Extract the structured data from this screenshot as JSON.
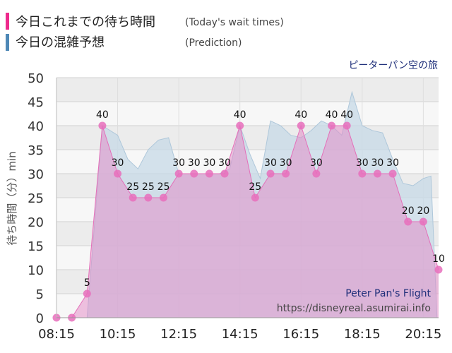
{
  "legend": [
    {
      "label": "今日これまでの待ち時間",
      "sub": "(Today's wait times)",
      "color": "#ee2a8d"
    },
    {
      "label": "今日の混雑予想",
      "sub": "(Prediction)",
      "color": "#4e88b6"
    }
  ],
  "attraction_jp": "ピーターパン空の旅",
  "attraction_en": "Peter Pan's Flight",
  "source_url": "https://disneyreal.asumirai.info",
  "chart_data": {
    "type": "area",
    "ylabel": "待ち時間（分）min",
    "ylim": [
      0,
      50
    ],
    "yticks": [
      0,
      5,
      10,
      15,
      20,
      25,
      30,
      35,
      40,
      45,
      50
    ],
    "xlim": [
      "08:15",
      "20:45"
    ],
    "xticks": [
      "08:15",
      "10:15",
      "12:15",
      "14:15",
      "16:15",
      "18:15",
      "20:15"
    ],
    "grid": true,
    "series": [
      {
        "name": "今日これまでの待ち時間",
        "color": "#ee2a8d",
        "times": [
          "08:15",
          "08:45",
          "09:15",
          "09:45",
          "10:15",
          "10:45",
          "11:15",
          "11:45",
          "12:15",
          "12:45",
          "13:15",
          "13:45",
          "14:15",
          "14:45",
          "15:15",
          "15:45",
          "16:15",
          "16:45",
          "17:15",
          "17:45",
          "18:15",
          "18:45",
          "19:15",
          "19:45",
          "20:15",
          "20:45"
        ],
        "values": [
          0,
          0,
          5,
          40,
          30,
          25,
          25,
          25,
          30,
          30,
          30,
          30,
          40,
          25,
          30,
          30,
          40,
          30,
          40,
          40,
          30,
          30,
          30,
          20,
          20,
          10
        ],
        "labels": [
          "",
          "",
          "5",
          "40",
          "30",
          "25",
          "25",
          "25",
          "30",
          "30",
          "30",
          "30",
          "40",
          "25",
          "30",
          "30",
          "40",
          "30",
          "40",
          "40",
          "30",
          "30",
          "30",
          "20",
          "20",
          "10"
        ]
      },
      {
        "name": "今日の混雑予想",
        "color": "#4e88b6",
        "times": [
          "08:15",
          "08:45",
          "09:15",
          "09:45",
          "10:15",
          "10:35",
          "10:55",
          "11:15",
          "11:35",
          "11:55",
          "12:15",
          "12:35",
          "12:55",
          "13:15",
          "13:35",
          "13:55",
          "14:15",
          "14:35",
          "14:55",
          "15:15",
          "15:35",
          "15:55",
          "16:15",
          "16:35",
          "16:55",
          "17:15",
          "17:35",
          "17:55",
          "18:15",
          "18:35",
          "18:55",
          "19:15",
          "19:35",
          "19:55",
          "20:15",
          "20:30",
          "20:42"
        ],
        "values": [
          0,
          0,
          0,
          40,
          38,
          33,
          31,
          35,
          37,
          37.5,
          30,
          30,
          30,
          30,
          30,
          31,
          40,
          34,
          29,
          41,
          40,
          38,
          37.5,
          39,
          41,
          40,
          38,
          47,
          40,
          39,
          38.5,
          33,
          28,
          27.5,
          29,
          29.5,
          0
        ]
      }
    ]
  }
}
